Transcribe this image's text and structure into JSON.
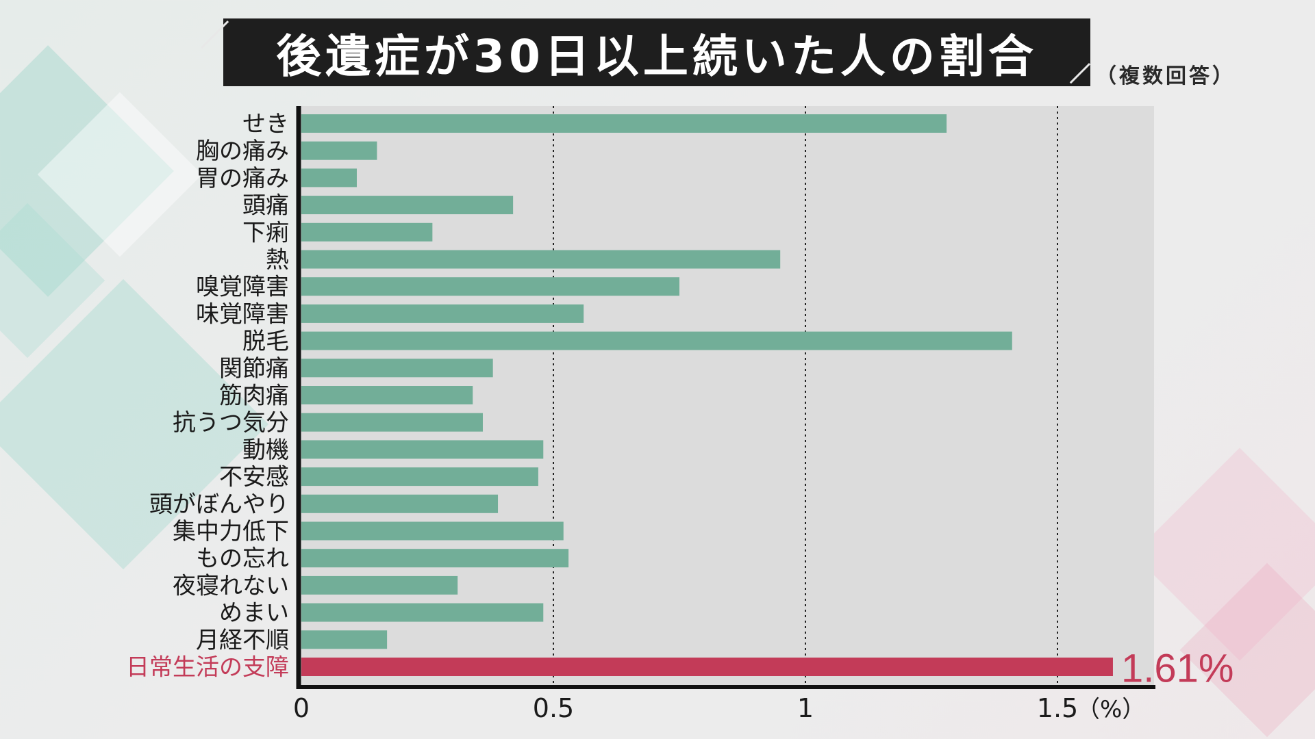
{
  "title": "後遺症が30日以上続いた人の割合",
  "subtitle": "（複数回答）",
  "chart_data": {
    "type": "bar",
    "orientation": "horizontal",
    "categories": [
      "せき",
      "胸の痛み",
      "胃の痛み",
      "頭痛",
      "下痢",
      "熱",
      "嗅覚障害",
      "味覚障害",
      "脱毛",
      "関節痛",
      "筋肉痛",
      "抗うつ気分",
      "動機",
      "不安感",
      "頭がぼんやり",
      "集中力低下",
      "もの忘れ",
      "夜寝れない",
      "めまい",
      "月経不順",
      "日常生活の支障"
    ],
    "values": [
      1.28,
      0.15,
      0.11,
      0.42,
      0.26,
      0.95,
      0.75,
      0.56,
      1.41,
      0.38,
      0.34,
      0.36,
      0.48,
      0.47,
      0.39,
      0.52,
      0.53,
      0.31,
      0.48,
      0.17,
      1.61
    ],
    "highlight_index": 20,
    "highlight_label": "1.61%",
    "xticks": [
      "0",
      "0.5",
      "1",
      "1.5"
    ],
    "xtick_values": [
      0,
      0.5,
      1,
      1.5
    ],
    "unit_label": "（%）",
    "xlim": [
      0,
      1.68
    ],
    "grid": "dotted vertical at 0.5, 1, 1.5",
    "colors": {
      "bar": "#72ae98",
      "highlight": "#c33b58",
      "axis": "#111111",
      "label": "#1a1a1a",
      "highlight_text": "#c33b58"
    }
  }
}
